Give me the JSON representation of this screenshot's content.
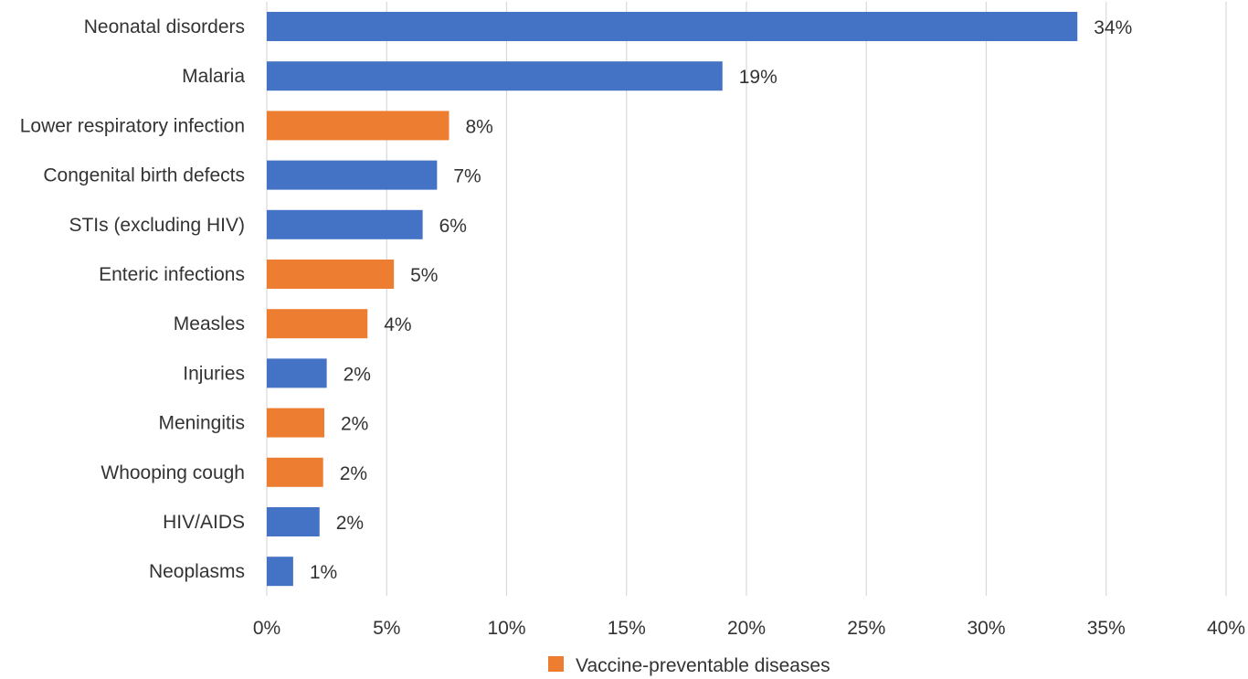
{
  "chart_data": {
    "type": "bar",
    "orientation": "horizontal",
    "categories": [
      "Neonatal disorders",
      "Malaria",
      "Lower respiratory infection",
      "Congenital birth defects",
      "STIs (excluding HIV)",
      "Enteric infections",
      "Measles",
      "Injuries",
      "Meningitis",
      "Whooping cough",
      "HIV/AIDS",
      "Neoplasms"
    ],
    "values": [
      33.8,
      19.0,
      7.6,
      7.1,
      6.5,
      5.3,
      4.2,
      2.5,
      2.4,
      2.35,
      2.2,
      1.1
    ],
    "value_labels": [
      "34%",
      "19%",
      "8%",
      "7%",
      "6%",
      "5%",
      "4%",
      "2%",
      "2%",
      "2%",
      "2%",
      "1%"
    ],
    "vaccine_preventable": [
      false,
      false,
      true,
      false,
      false,
      true,
      true,
      false,
      true,
      true,
      false,
      false
    ],
    "colors": {
      "default": "#4472C4",
      "vaccine_preventable": "#ED7D31",
      "grid": "#D9D9D9"
    },
    "xlim": [
      0,
      40
    ],
    "xticks": [
      0,
      5,
      10,
      15,
      20,
      25,
      30,
      35,
      40
    ],
    "xtick_labels": [
      "0%",
      "5%",
      "10%",
      "15%",
      "20%",
      "25%",
      "30%",
      "35%",
      "40%"
    ],
    "grid": true,
    "legend": {
      "label": "Vaccine-preventable diseases",
      "position": "bottom-center"
    },
    "title": "",
    "xlabel": "",
    "ylabel": ""
  }
}
